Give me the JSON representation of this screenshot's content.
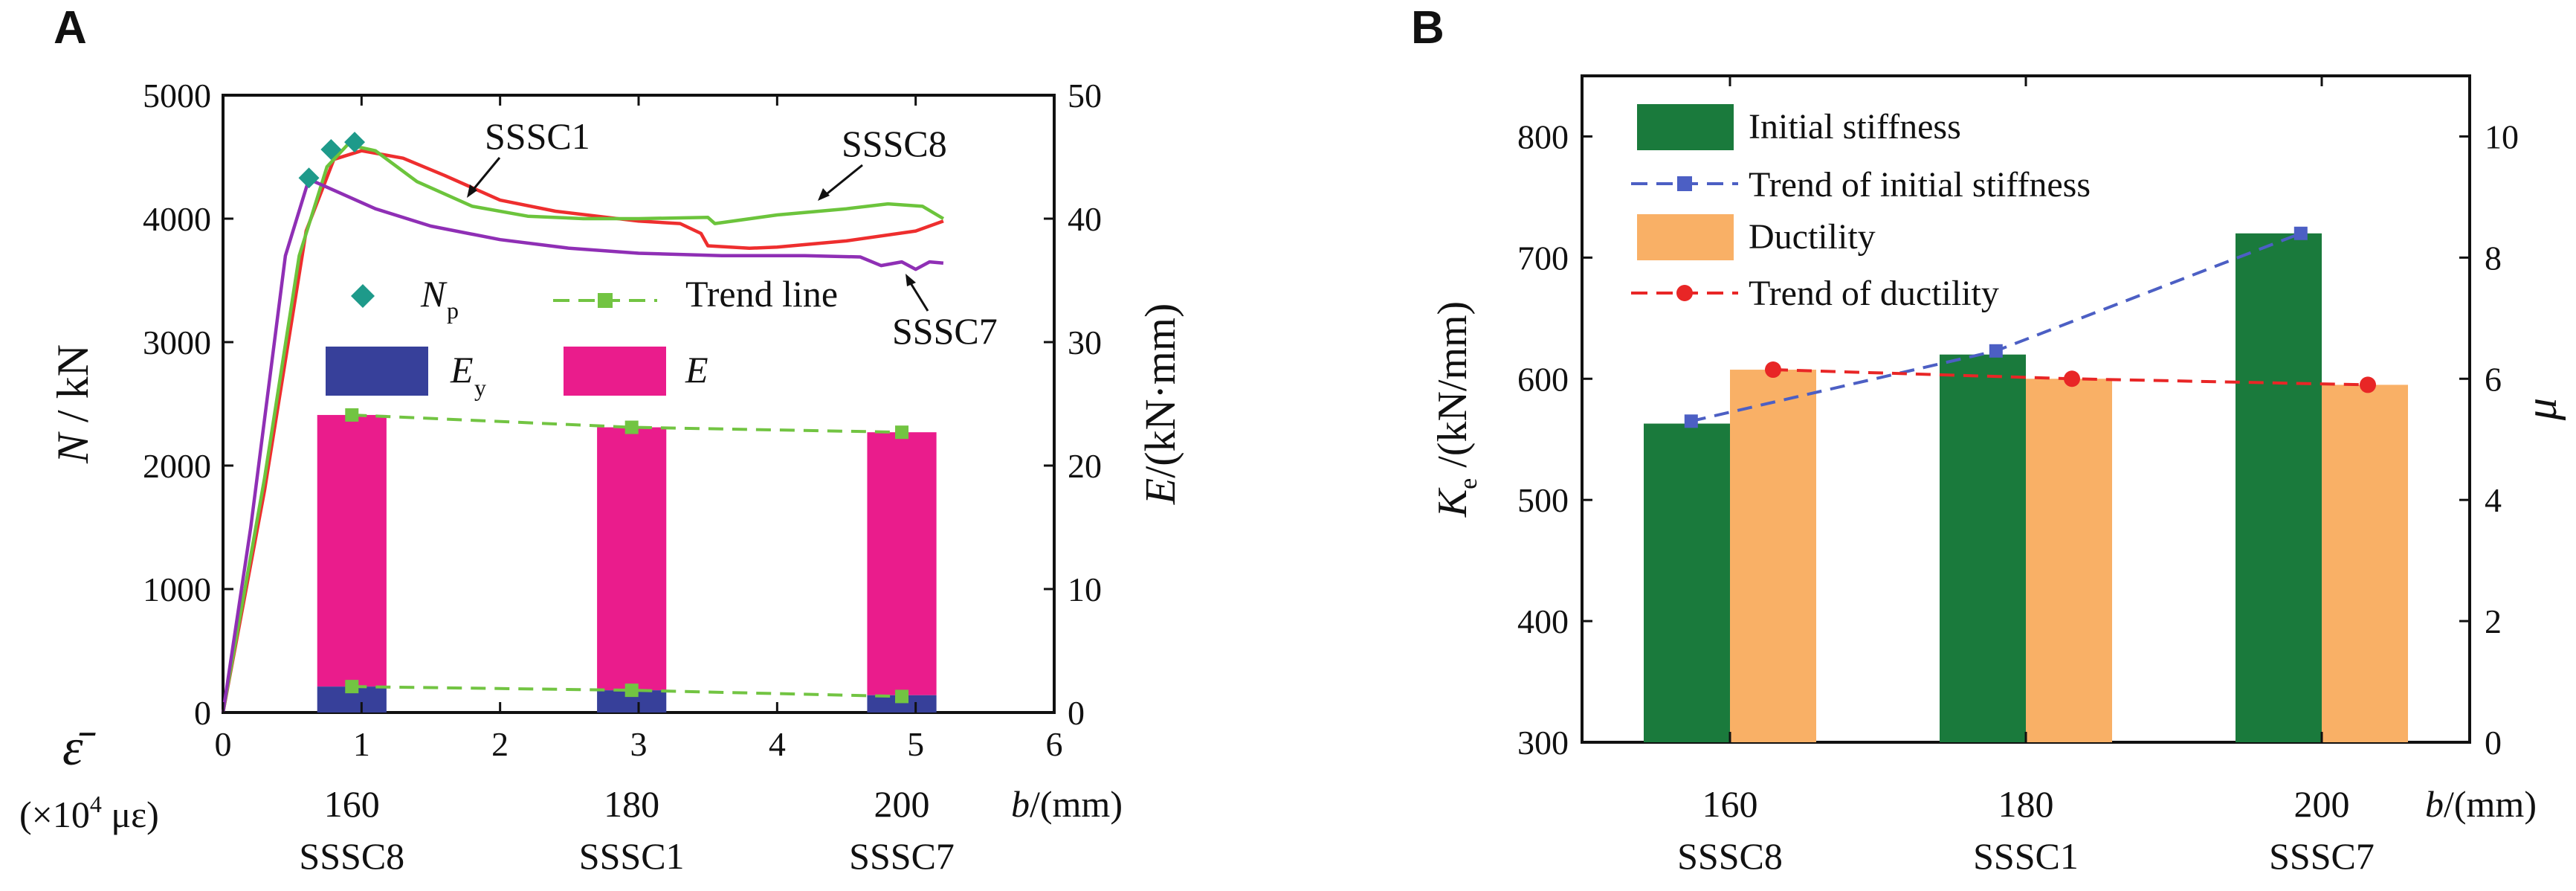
{
  "panels": {
    "a_label": "A",
    "b_label": "B"
  },
  "colors": {
    "sssc1": "#ee2e2e",
    "sssc8": "#6cc43c",
    "sssc7": "#8f2fb5",
    "np_marker": "#1e9a8a",
    "trend_line": "#72c442",
    "ey_bar": "#37409a",
    "e_bar": "#ea1c8c",
    "initial_stiffness": "#1a7a3c",
    "stiffness_trend": "#4c5fc4",
    "ductility": "#f9b066",
    "ductility_trend": "#e82626"
  },
  "chart_data": [
    {
      "type": "line",
      "panel": "A",
      "x_axis": {
        "label_symbol": "ε̄",
        "label_unit": "(×10",
        "label_exp": "4",
        "label_tail": " με)",
        "lim": [
          0,
          6
        ],
        "ticks": [
          "0",
          "1",
          "2",
          "3",
          "4",
          "5",
          "6"
        ]
      },
      "y_axis_left": {
        "label_italic": "N",
        "label_tail": " / kN",
        "lim": [
          0,
          5000
        ],
        "ticks": [
          "0",
          "1000",
          "2000",
          "3000",
          "4000",
          "5000"
        ]
      },
      "y_axis_right": {
        "label_italic": "E",
        "label_tail": "/(kN·mm)",
        "lim": [
          0,
          50
        ],
        "ticks": [
          "0",
          "10",
          "20",
          "30",
          "40",
          "50"
        ]
      },
      "series": [
        {
          "name": "SSSC1",
          "color_key": "sssc1",
          "points": [
            [
              0,
              0
            ],
            [
              0.3,
              1800
            ],
            [
              0.6,
              3900
            ],
            [
              0.8,
              4480
            ],
            [
              1.0,
              4550
            ],
            [
              1.3,
              4490
            ],
            [
              1.6,
              4350
            ],
            [
              2.0,
              4150
            ],
            [
              2.4,
              4060
            ],
            [
              3.0,
              3980
            ],
            [
              3.3,
              3960
            ],
            [
              3.45,
              3880
            ],
            [
              3.5,
              3780
            ],
            [
              3.8,
              3760
            ],
            [
              4.0,
              3770
            ],
            [
              4.5,
              3820
            ],
            [
              5.0,
              3900
            ],
            [
              5.2,
              3980
            ]
          ]
        },
        {
          "name": "SSSC8",
          "color_key": "sssc8",
          "points": [
            [
              0,
              0
            ],
            [
              0.3,
              1900
            ],
            [
              0.55,
              3700
            ],
            [
              0.75,
              4420
            ],
            [
              0.9,
              4600
            ],
            [
              1.1,
              4550
            ],
            [
              1.4,
              4300
            ],
            [
              1.8,
              4100
            ],
            [
              2.2,
              4020
            ],
            [
              2.6,
              4000
            ],
            [
              3.0,
              4000
            ],
            [
              3.5,
              4010
            ],
            [
              3.55,
              3960
            ],
            [
              4.0,
              4030
            ],
            [
              4.5,
              4080
            ],
            [
              4.8,
              4120
            ],
            [
              5.05,
              4100
            ],
            [
              5.2,
              4000
            ]
          ]
        },
        {
          "name": "SSSC7",
          "color_key": "sssc7",
          "points": [
            [
              0,
              0
            ],
            [
              0.2,
              1500
            ],
            [
              0.45,
              3700
            ],
            [
              0.62,
              4320
            ],
            [
              0.8,
              4230
            ],
            [
              1.1,
              4080
            ],
            [
              1.5,
              3940
            ],
            [
              2.0,
              3830
            ],
            [
              2.5,
              3760
            ],
            [
              3.0,
              3720
            ],
            [
              3.6,
              3700
            ],
            [
              4.2,
              3700
            ],
            [
              4.6,
              3690
            ],
            [
              4.75,
              3620
            ],
            [
              4.9,
              3650
            ],
            [
              5.0,
              3590
            ],
            [
              5.1,
              3650
            ],
            [
              5.2,
              3640
            ]
          ]
        }
      ],
      "np_points": {
        "name": "N",
        "sub": "p",
        "points": [
          [
            0.62,
            4330
          ],
          [
            0.78,
            4560
          ],
          [
            0.95,
            4620
          ]
        ]
      },
      "trend_line": {
        "name": "Trend line",
        "total_points": [
          [
            0.93,
            24.1
          ],
          [
            2.95,
            23.1
          ],
          [
            4.9,
            22.7
          ]
        ],
        "ey_points": [
          [
            0.93,
            2.1
          ],
          [
            2.95,
            1.8
          ],
          [
            4.9,
            1.3
          ]
        ]
      },
      "bars": {
        "ey_name": "E",
        "ey_sub": "y",
        "e_name": "E",
        "x_centers": [
          0.93,
          2.95,
          4.9
        ],
        "width": 0.5,
        "ey_values": [
          2.1,
          1.8,
          1.4
        ],
        "e_values": [
          24.1,
          23.1,
          22.7
        ]
      },
      "annotations": [
        "SSSC1",
        "SSSC8",
        "SSSC7"
      ],
      "extra_labels": {
        "b_values": [
          "160",
          "180",
          "200"
        ],
        "specimens": [
          "SSSC8",
          "SSSC1",
          "SSSC7"
        ],
        "b_label_italic": "b",
        "b_label_tail": "/(mm)"
      }
    },
    {
      "type": "bar",
      "panel": "B",
      "categories": [
        "160",
        "180",
        "200"
      ],
      "category_specimens": [
        "SSSC8",
        "SSSC1",
        "SSSC7"
      ],
      "xlabel_italic": "b",
      "xlabel_tail": "/(mm)",
      "y_axis_left": {
        "label_italic": "K",
        "label_sub": "e",
        "label_tail": " /(kN/mm)",
        "lim": [
          300,
          850
        ],
        "ticks": [
          "300",
          "400",
          "500",
          "600",
          "700",
          "800"
        ]
      },
      "y_axis_right": {
        "label_italic": "μ",
        "lim": [
          0,
          11
        ],
        "ticks": [
          "0",
          "2",
          "4",
          "6",
          "8",
          "10"
        ]
      },
      "series": [
        {
          "name": "Initial stiffness",
          "kind": "bar",
          "axis": "left",
          "color_key": "initial_stiffness",
          "values": [
            563,
            620,
            720
          ]
        },
        {
          "name": "Trend of initial stiffness",
          "kind": "line",
          "axis": "left",
          "color_key": "stiffness_trend",
          "values": [
            565,
            623,
            720
          ]
        },
        {
          "name": "Ductility",
          "kind": "bar",
          "axis": "right",
          "color_key": "ductility",
          "values": [
            6.15,
            6.0,
            5.9
          ]
        },
        {
          "name": "Trend of ductility",
          "kind": "line",
          "axis": "right",
          "color_key": "ductility_trend",
          "values": [
            6.15,
            6.0,
            5.9
          ]
        }
      ]
    }
  ]
}
